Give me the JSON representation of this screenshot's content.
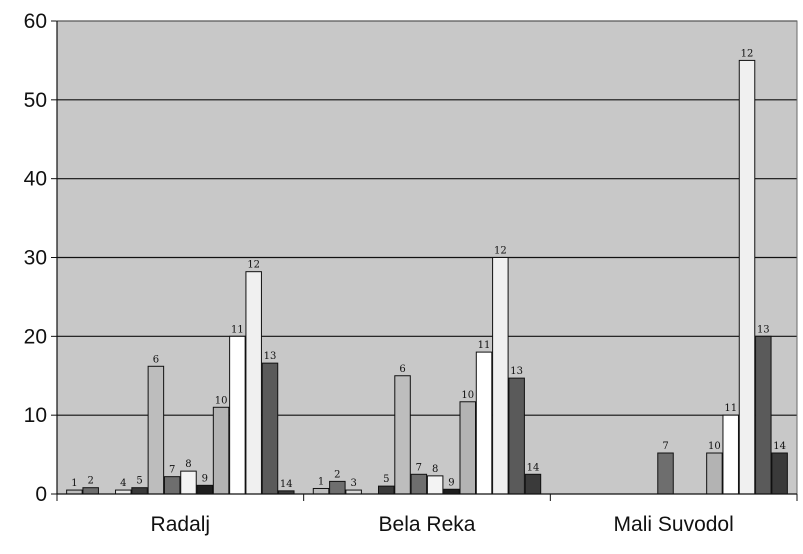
{
  "chart_data": {
    "type": "bar",
    "title": "",
    "xlabel": "",
    "ylabel": "",
    "ylim": [
      0,
      60
    ],
    "yticks": [
      0,
      10,
      20,
      30,
      40,
      50,
      60
    ],
    "yticks_text": [
      "0",
      "10",
      "20",
      "30",
      "40",
      "50",
      "60"
    ],
    "grid": true,
    "legend": "none",
    "categories": [
      "Radalj",
      "Bela Reka",
      "Mali Suvodol"
    ],
    "series": [
      {
        "label": "1",
        "color": "#bdbdbd",
        "values": [
          0.5,
          0.7,
          null
        ]
      },
      {
        "label": "2",
        "color": "#6e6e6e",
        "values": [
          0.8,
          1.6,
          null
        ]
      },
      {
        "label": "3",
        "color": "#d9d9d9",
        "values": [
          null,
          0.5,
          null
        ]
      },
      {
        "label": "4",
        "color": "#e6e6e6",
        "values": [
          0.5,
          null,
          null
        ]
      },
      {
        "label": "5",
        "color": "#3a3a3a",
        "values": [
          0.8,
          1.0,
          null
        ]
      },
      {
        "label": "6",
        "color": "#bdbdbd",
        "values": [
          16.2,
          15.0,
          null
        ]
      },
      {
        "label": "7",
        "color": "#6e6e6e",
        "values": [
          2.2,
          2.5,
          5.2
        ]
      },
      {
        "label": "8",
        "color": "#f3f3f3",
        "values": [
          2.9,
          2.3,
          null
        ]
      },
      {
        "label": "9",
        "color": "#1e1e1e",
        "values": [
          1.1,
          0.6,
          null
        ]
      },
      {
        "label": "10",
        "color": "#b3b3b3",
        "values": [
          11.0,
          11.7,
          5.2
        ]
      },
      {
        "label": "11",
        "color": "#ffffff",
        "values": [
          20.0,
          18.0,
          10.0
        ]
      },
      {
        "label": "12",
        "color": "#f0f0f0",
        "values": [
          28.2,
          30.0,
          55.0
        ]
      },
      {
        "label": "13",
        "color": "#5a5a5a",
        "values": [
          16.6,
          14.7,
          20.0
        ]
      },
      {
        "label": "14",
        "color": "#3a3a3a",
        "values": [
          0.4,
          2.5,
          5.2
        ]
      }
    ]
  }
}
